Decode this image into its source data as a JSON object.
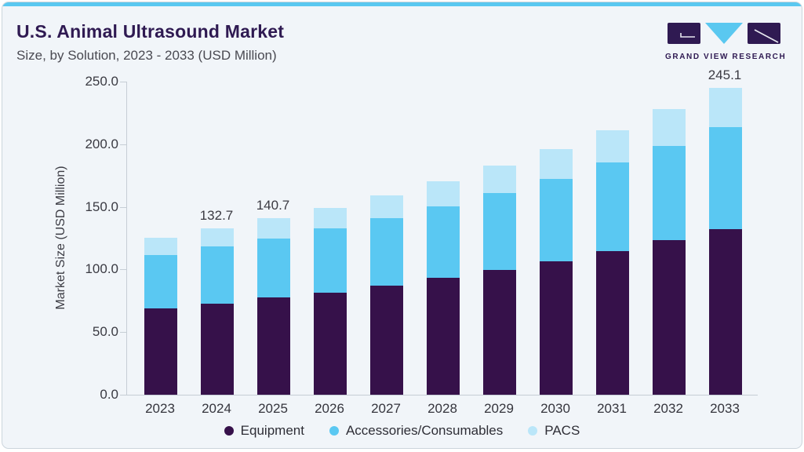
{
  "header": {
    "title": "U.S. Animal Ultrasound Market",
    "subtitle": "Size, by Solution, 2023 - 2033 (USD Million)"
  },
  "logo": {
    "text": "GRAND VIEW RESEARCH"
  },
  "colors": {
    "accent_bar": "#5ac8f0",
    "title_purple": "#2f1a52",
    "equipment": "#36114a",
    "accessories": "#5ac8f2",
    "pacs": "#bae6f9",
    "axis_line": "#c6cdd5",
    "card_background": "#f1f5f9"
  },
  "chart_data": {
    "type": "bar",
    "stacked": true,
    "title": "U.S. Animal Ultrasound Market",
    "subtitle": "Size, by Solution, 2023 - 2033 (USD Million)",
    "xlabel": "",
    "ylabel": "Market Size (USD Million)",
    "ylim": [
      0,
      250
    ],
    "ytick_labels": [
      "0.0",
      "50.0",
      "100.0",
      "150.0",
      "200.0",
      "250.0"
    ],
    "grid": false,
    "legend_position": "bottom",
    "categories": [
      "2023",
      "2024",
      "2025",
      "2026",
      "2027",
      "2028",
      "2029",
      "2030",
      "2031",
      "2032",
      "2033"
    ],
    "series": [
      {
        "name": "Equipment",
        "color": "#36114a",
        "values": [
          69.0,
          72.8,
          77.6,
          81.5,
          87.4,
          93.3,
          99.4,
          106.5,
          114.8,
          123.5,
          132.2
        ]
      },
      {
        "name": "Accessories/Consumables",
        "color": "#5ac8f2",
        "values": [
          42.8,
          45.5,
          47.0,
          51.2,
          53.6,
          57.1,
          61.6,
          65.6,
          70.4,
          75.4,
          81.3
        ]
      },
      {
        "name": "PACS",
        "color": "#bae6f9",
        "values": [
          13.5,
          14.4,
          16.1,
          16.6,
          18.4,
          19.8,
          21.7,
          24.2,
          26.0,
          29.3,
          31.6
        ]
      }
    ],
    "bar_total_labels": [
      "",
      "132.7",
      "140.7",
      "",
      "",
      "",
      "",
      "",
      "",
      "",
      "245.1"
    ],
    "totals": [
      125.3,
      132.7,
      140.7,
      149.3,
      159.4,
      170.2,
      182.7,
      196.3,
      211.2,
      228.2,
      245.1
    ]
  }
}
